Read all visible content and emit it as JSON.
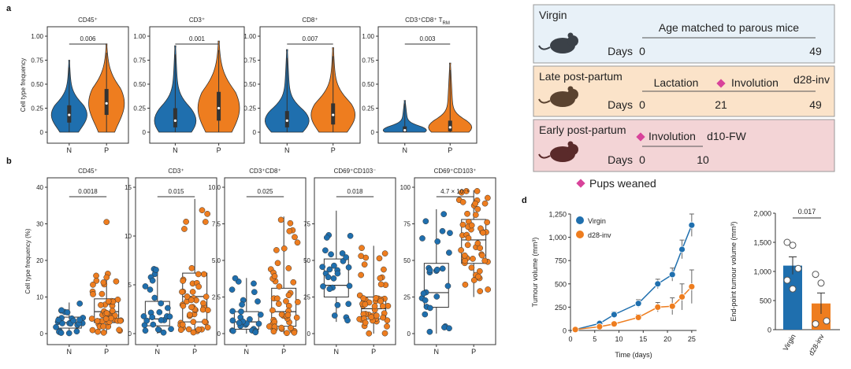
{
  "panel_letters": [
    "a",
    "b",
    "d"
  ],
  "colors": {
    "N": "#1f6fae",
    "P": "#ee7d1f",
    "virgin_bg": "#e8f1f8",
    "late_bg": "#fbe3c9",
    "early_bg": "#f3d4d6",
    "pup_marker": "#d8439a"
  },
  "chart_data": [
    {
      "id": "a1",
      "type": "violin",
      "title": "CD45⁺",
      "ylabel": "Cell type frequency",
      "categories": [
        "N",
        "P"
      ],
      "ylim": [
        0,
        1.0
      ],
      "yticks": [
        "0",
        "0.25",
        "0.50",
        "0.75",
        "1.00"
      ],
      "p_value": "0.006",
      "series": [
        {
          "name": "N",
          "median": 0.18,
          "q1": 0.1,
          "q3": 0.28,
          "max": 0.75
        },
        {
          "name": "P",
          "median": 0.3,
          "q1": 0.18,
          "q3": 0.45,
          "max": 0.92
        }
      ]
    },
    {
      "id": "a2",
      "type": "violin",
      "title": "CD3⁺",
      "categories": [
        "N",
        "P"
      ],
      "ylim": [
        0,
        1.0
      ],
      "yticks": [
        "0",
        "0.25",
        "0.50",
        "0.75",
        "1.00"
      ],
      "p_value": "0.001",
      "series": [
        {
          "name": "N",
          "median": 0.12,
          "q1": 0.05,
          "q3": 0.25,
          "max": 0.9
        },
        {
          "name": "P",
          "median": 0.25,
          "q1": 0.12,
          "q3": 0.42,
          "max": 0.95
        }
      ]
    },
    {
      "id": "a3",
      "type": "violin",
      "title": "CD8⁺",
      "categories": [
        "N",
        "P"
      ],
      "ylim": [
        0,
        1.0
      ],
      "yticks": [
        "0",
        "0.25",
        "0.50",
        "0.75",
        "1.00"
      ],
      "p_value": "0.007",
      "series": [
        {
          "name": "N",
          "median": 0.12,
          "q1": 0.05,
          "q3": 0.22,
          "max": 0.86
        },
        {
          "name": "P",
          "median": 0.18,
          "q1": 0.08,
          "q3": 0.3,
          "max": 0.88
        }
      ]
    },
    {
      "id": "a4",
      "type": "violin",
      "title": "CD3⁺CD8⁺ T",
      "title_sub": "RM",
      "categories": [
        "N",
        "P"
      ],
      "ylim": [
        0,
        1.0
      ],
      "yticks": [
        "0",
        "0.25",
        "0.50",
        "0.75",
        "1.00"
      ],
      "p_value": "0.003",
      "series": [
        {
          "name": "N",
          "median": 0.02,
          "q1": 0.0,
          "q3": 0.06,
          "max": 0.33
        },
        {
          "name": "P",
          "median": 0.05,
          "q1": 0.01,
          "q3": 0.12,
          "max": 0.72
        }
      ]
    },
    {
      "id": "b1",
      "type": "box_strip",
      "title": "CD45⁺",
      "ylabel": "Cell type frequency (%)",
      "categories": [
        "N",
        "P"
      ],
      "ylim": [
        0,
        40
      ],
      "yticks": [
        "0",
        "10",
        "20",
        "30",
        "40"
      ],
      "p_value": "0.0018",
      "series": [
        {
          "name": "N",
          "q1": 1.5,
          "median": 3.0,
          "q3": 4.5,
          "whisker_low": 0,
          "whisker_high": 8.5
        },
        {
          "name": "P",
          "q1": 3.0,
          "median": 6.0,
          "q3": 9.5,
          "whisker_low": 0,
          "whisker_high": 17,
          "outlier": 30.5
        }
      ]
    },
    {
      "id": "b2",
      "type": "box_strip",
      "title": "CD3⁺",
      "categories": [
        "N",
        "P"
      ],
      "ylim": [
        0,
        15
      ],
      "yticks": [
        "0",
        "5",
        "10",
        "15"
      ],
      "p_value": "0.015",
      "series": [
        {
          "name": "N",
          "q1": 0.8,
          "median": 1.5,
          "q3": 3.3,
          "whisker_low": 0,
          "whisker_high": 6.8
        },
        {
          "name": "P",
          "q1": 1.2,
          "median": 3.8,
          "q3": 6.2,
          "whisker_low": 0,
          "whisker_high": 13.8
        }
      ]
    },
    {
      "id": "b3",
      "type": "box_strip",
      "title": "CD3⁺CD8⁺",
      "categories": [
        "N",
        "P"
      ],
      "ylim": [
        0,
        10
      ],
      "yticks": [
        "0",
        "2.5",
        "5.0",
        "7.5",
        "10.0"
      ],
      "p_value": "0.025",
      "series": [
        {
          "name": "N",
          "q1": 0.3,
          "median": 0.8,
          "q3": 1.5,
          "whisker_low": 0,
          "whisker_high": 3.8
        },
        {
          "name": "P",
          "q1": 0.5,
          "median": 1.5,
          "q3": 3.1,
          "whisker_low": 0,
          "whisker_high": 8.0
        }
      ]
    },
    {
      "id": "b4",
      "type": "box_strip",
      "title": "CD69⁺CD103⁻",
      "categories": [
        "N",
        "P"
      ],
      "ylim": [
        0,
        100
      ],
      "yticks": [
        "0",
        "25",
        "50",
        "75"
      ],
      "p_value": "0.018",
      "series": [
        {
          "name": "N",
          "q1": 25,
          "median": 33,
          "q3": 51,
          "whisker_low": 8,
          "whisker_high": 84
        },
        {
          "name": "P",
          "q1": 10,
          "median": 17,
          "q3": 25,
          "whisker_low": 0,
          "whisker_high": 60
        }
      ]
    },
    {
      "id": "b5",
      "type": "box_strip",
      "title": "CD69⁺CD103⁺",
      "categories": [
        "N",
        "P"
      ],
      "ylim": [
        0,
        100
      ],
      "yticks": [
        "0",
        "25",
        "50",
        "75",
        "100"
      ],
      "p_value": "4.7 × 10⁻⁶",
      "series": [
        {
          "name": "N",
          "q1": 18,
          "median": 28,
          "q3": 48,
          "whisker_low": 0,
          "whisker_high": 85
        },
        {
          "name": "P",
          "q1": 48,
          "median": 64,
          "q3": 78,
          "whisker_low": 25,
          "whisker_high": 98
        }
      ]
    },
    {
      "id": "d1",
      "type": "line",
      "xlabel": "Time (days)",
      "ylabel": "Tumour volume (mm³)",
      "xlim": [
        0,
        26
      ],
      "ylim": [
        0,
        1250
      ],
      "xticks": [
        "0",
        "5",
        "10",
        "15",
        "20",
        "25"
      ],
      "yticks": [
        "0",
        "250",
        "500",
        "750",
        "1,000",
        "1,250"
      ],
      "series": [
        {
          "name": "Virgin",
          "x": [
            1,
            6,
            9,
            14,
            18,
            21,
            23,
            25
          ],
          "y": [
            10,
            75,
            170,
            290,
            500,
            600,
            870,
            1130
          ],
          "err": [
            10,
            20,
            30,
            40,
            50,
            70,
            100,
            120
          ]
        },
        {
          "name": "d28-inv",
          "x": [
            1,
            6,
            9,
            14,
            18,
            21,
            23,
            25
          ],
          "y": [
            10,
            40,
            70,
            140,
            250,
            260,
            360,
            470
          ],
          "err": [
            10,
            15,
            20,
            30,
            50,
            90,
            140,
            180
          ]
        }
      ],
      "legend": [
        "Virgin",
        "d28-inv"
      ]
    },
    {
      "id": "d2",
      "type": "bar",
      "ylabel": "End-point tumour volume (mm³)",
      "categories": [
        "Virgin",
        "d28-inv"
      ],
      "values": [
        1100,
        450
      ],
      "errors": [
        150,
        180
      ],
      "ylim": [
        0,
        2000
      ],
      "yticks": [
        "0",
        "500",
        "1,000",
        "1,500",
        "2,000"
      ],
      "p_value": "0.017",
      "points": [
        [
          1500,
          1450,
          1050,
          850,
          700
        ],
        [
          950,
          800,
          150,
          100
        ]
      ]
    },
    {
      "id": "c",
      "type": "timeline",
      "rows": [
        {
          "title": "Virgin",
          "caption": "Age matched to parous mice",
          "days_label": "Days",
          "ticks": [
            "0",
            "49"
          ]
        },
        {
          "title": "Late post-partum",
          "stage1": "Lactation",
          "stage2": "Involution",
          "end_label": "d28-inv",
          "days_label": "Days",
          "ticks": [
            "0",
            "21",
            "49"
          ]
        },
        {
          "title": "Early post-partum",
          "stage1": "Involution",
          "end_label": "d10-FW",
          "days_label": "Days",
          "ticks": [
            "0",
            "10"
          ]
        }
      ],
      "legend_text": "Pups weaned"
    }
  ]
}
